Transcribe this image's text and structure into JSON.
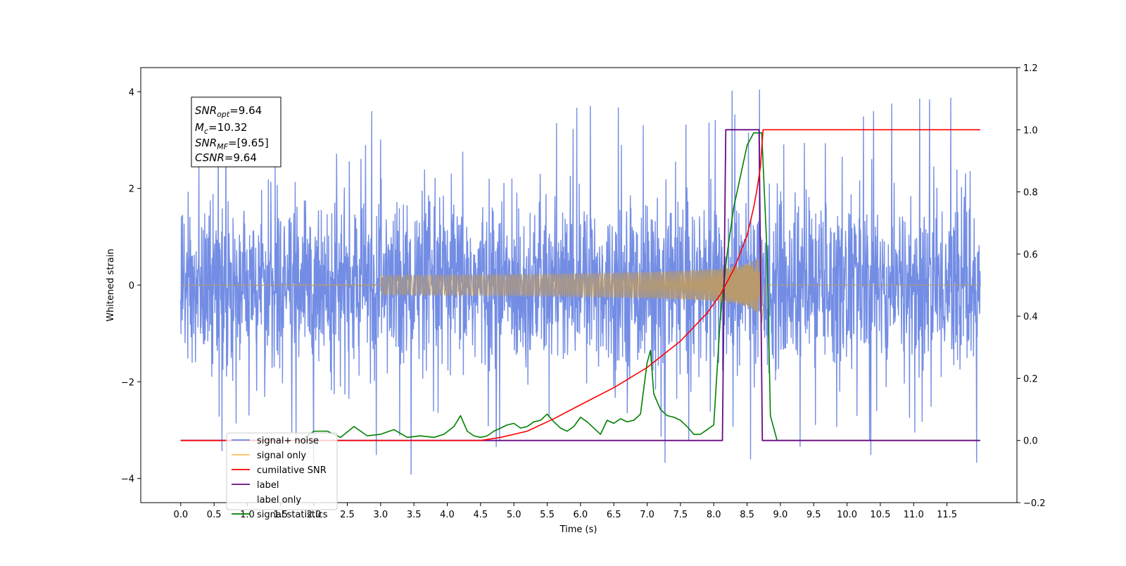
{
  "chart_data": {
    "type": "line",
    "xlabel": "Time (s)",
    "ylabel_left": "Whitened strain",
    "ylabel_right": "",
    "xlim": [
      -0.6,
      12.55
    ],
    "ylim_left": [
      -4.5,
      4.5
    ],
    "ylim_right": [
      -0.2,
      1.2
    ],
    "x_ticks": [
      0.0,
      0.5,
      1.0,
      1.5,
      2.0,
      2.5,
      3.0,
      3.5,
      4.0,
      4.5,
      5.0,
      5.5,
      6.0,
      6.5,
      7.0,
      7.5,
      8.0,
      8.5,
      9.0,
      9.5,
      10.0,
      10.5,
      11.0,
      11.5
    ],
    "x_tick_labels": [
      "0.0",
      "0.5",
      "1.0",
      "1.5",
      "2.0",
      "2.5",
      "3.0",
      "3.5",
      "4.0",
      "4.5",
      "5.0",
      "5.5",
      "6.0",
      "6.5",
      "7.0",
      "7.5",
      "8.0",
      "8.5",
      "9.0",
      "9.5",
      "10.0",
      "10.5",
      "11.0",
      "11.5"
    ],
    "y_ticks_left": [
      -4,
      -2,
      0,
      2,
      4
    ],
    "y_tick_labels_left": [
      "−4",
      "−2",
      "0",
      "2",
      "4"
    ],
    "y_ticks_right": [
      -0.2,
      0.0,
      0.2,
      0.4,
      0.6,
      0.8,
      1.0,
      1.2
    ],
    "y_tick_labels_right": [
      "−0.2",
      "0.0",
      "0.2",
      "0.4",
      "0.6",
      "0.8",
      "1.0",
      "1.2"
    ],
    "grid": false,
    "legend_position": "lower-left",
    "annotation": {
      "lines": [
        {
          "base": "SNR",
          "sub": "opt",
          "value": "=9.64"
        },
        {
          "base": "M",
          "sub": "c",
          "value": "=10.32"
        },
        {
          "base": "SNR",
          "sub": "MF",
          "value": "=[9.65]"
        },
        {
          "base": "CSNR",
          "sub": "",
          "value": "=9.64"
        }
      ]
    },
    "series": [
      {
        "name": "signal+ noise",
        "axis": "left",
        "color": "#6b87e3",
        "kind": "noise-band",
        "x_range": [
          0.0,
          12.0
        ],
        "typical_amplitude": 1.6,
        "spike_max": 4.1,
        "spike_min": -4.1
      },
      {
        "name": "signal only",
        "axis": "left",
        "color": "#ffbf5a",
        "kind": "chirp",
        "x_start": 0.0,
        "x_merger": 8.72,
        "x_end": 12.0,
        "peak_amplitude": 0.85
      },
      {
        "name": "cumilative SNR",
        "axis": "right",
        "color": "#ff0000",
        "x": [
          0.0,
          4.5,
          4.8,
          5.2,
          5.6,
          6.0,
          6.5,
          7.0,
          7.5,
          7.9,
          8.1,
          8.3,
          8.5,
          8.6,
          8.65,
          8.7,
          8.74,
          9.0,
          10.0,
          11.0,
          12.0
        ],
        "values": [
          0.0,
          0.0,
          0.01,
          0.03,
          0.07,
          0.115,
          0.17,
          0.235,
          0.32,
          0.41,
          0.47,
          0.55,
          0.66,
          0.75,
          0.81,
          0.88,
          1.0,
          1.0,
          1.0,
          1.0,
          1.0
        ]
      },
      {
        "name": "label",
        "axis": "right",
        "color": "#6a0a83",
        "x": [
          0.0,
          8.13,
          8.18,
          8.68,
          8.73,
          12.0
        ],
        "values": [
          0.0,
          0.0,
          1.0,
          1.0,
          0.0,
          0.0
        ]
      },
      {
        "name": "label only",
        "axis": "right",
        "color": "#6a0a83",
        "hidden": true,
        "x": [],
        "values": []
      },
      {
        "name": "signal statistics",
        "axis": "right",
        "color": "#008000",
        "x": [
          0.0,
          0.1,
          0.5,
          1.0,
          1.5,
          1.8,
          1.9,
          2.0,
          2.2,
          2.4,
          2.6,
          2.8,
          3.0,
          3.2,
          3.4,
          3.6,
          3.8,
          3.95,
          4.1,
          4.2,
          4.3,
          4.4,
          4.5,
          4.6,
          4.7,
          4.8,
          4.9,
          5.0,
          5.1,
          5.2,
          5.3,
          5.4,
          5.5,
          5.6,
          5.7,
          5.8,
          5.9,
          6.0,
          6.1,
          6.2,
          6.3,
          6.4,
          6.5,
          6.6,
          6.7,
          6.8,
          6.9,
          7.0,
          7.05,
          7.1,
          7.2,
          7.3,
          7.4,
          7.5,
          7.6,
          7.7,
          7.8,
          7.9,
          8.0,
          8.1,
          8.2,
          8.3,
          8.4,
          8.5,
          8.6,
          8.65,
          8.72,
          8.8,
          8.85,
          8.95,
          9.5,
          10.0,
          11.0,
          11.95
        ],
        "values": [
          0.0,
          0.0,
          0.0,
          0.0,
          0.0,
          0.0,
          0.015,
          0.03,
          0.03,
          0.01,
          0.045,
          0.015,
          0.02,
          0.035,
          0.01,
          0.015,
          0.01,
          0.02,
          0.045,
          0.08,
          0.03,
          0.015,
          0.01,
          0.015,
          0.03,
          0.04,
          0.05,
          0.055,
          0.04,
          0.045,
          0.06,
          0.065,
          0.085,
          0.06,
          0.04,
          0.03,
          0.045,
          0.075,
          0.06,
          0.04,
          0.02,
          0.065,
          0.055,
          0.07,
          0.06,
          0.065,
          0.085,
          0.25,
          0.29,
          0.15,
          0.1,
          0.08,
          0.075,
          0.065,
          0.045,
          0.02,
          0.02,
          0.035,
          0.05,
          0.4,
          0.6,
          0.75,
          0.85,
          0.95,
          0.99,
          0.99,
          0.99,
          0.6,
          0.08,
          0.0,
          0.0,
          0.0,
          0.0,
          0.0
        ]
      }
    ]
  }
}
